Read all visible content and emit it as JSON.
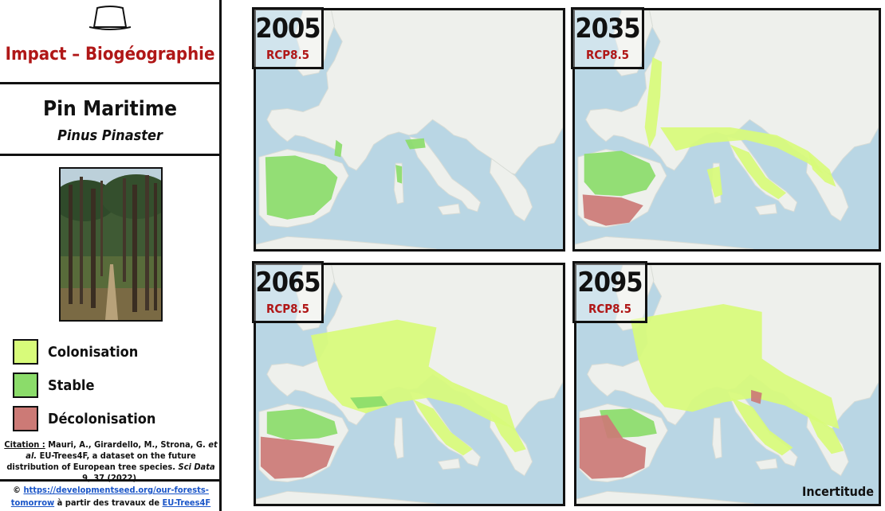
{
  "header": {
    "title": "Impact – Biogéographie",
    "hat_icon": "hat-icon"
  },
  "species": {
    "common_name": "Pin Maritime",
    "latin_name": "Pinus Pinaster"
  },
  "legend": [
    {
      "label": "Colonisation",
      "color": "#d8fb7a"
    },
    {
      "label": "Stable",
      "color": "#8bdc6a"
    },
    {
      "label": "Décolonisation",
      "color": "#cc7a76"
    }
  ],
  "citation": {
    "prefix": "Citation :",
    "authors": "Mauri, A., Girardello, M., Strona, G.",
    "etal": "et al.",
    "title": "EU-Trees4F, a dataset on the future distribution of European tree species.",
    "journal": "Sci Data",
    "ref": "9, 37 (2022)."
  },
  "credits": {
    "symbol": "©",
    "url": "https://developmentseed.org/our-forests-tomorrow",
    "middle": "à partir des travaux de",
    "source": "EU-Trees4F"
  },
  "maps": [
    {
      "year": "2005",
      "scenario": "RCP8.5"
    },
    {
      "year": "2035",
      "scenario": "RCP8.5"
    },
    {
      "year": "2065",
      "scenario": "RCP8.5"
    },
    {
      "year": "2095",
      "scenario": "RCP8.5"
    }
  ],
  "uncertainty_label": "Incertitude",
  "colors": {
    "sea": "#b9d6e4",
    "land": "#eef0ec",
    "accent": "#b01717",
    "link": "#1a55c8"
  }
}
